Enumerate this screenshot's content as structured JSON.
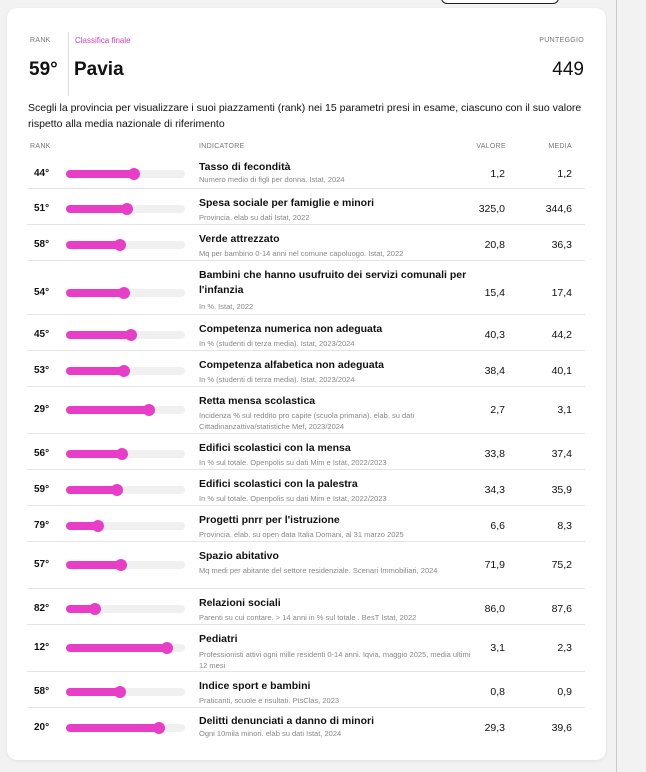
{
  "header": {
    "rank_label": "RANK",
    "classification_label": "Classifica finale",
    "score_label": "PUNTEGGIO",
    "rank": "59°",
    "city": "Pavia",
    "score": "449"
  },
  "description": "Scegli la provincia per visualizzare i suoi piazzamenti (rank) nei 15 parametri presi in esame, ciascuno con il suo valore rispetto alla media nazionale di riferimento",
  "table": {
    "col_rank": "RANK",
    "col_indicator": "INDICATORE",
    "col_value": "VALORE",
    "col_mean": "MEDIA",
    "accent_color": "#e83ec7",
    "rows": [
      {
        "rank": "44°",
        "level": 0.57,
        "title": "Tasso di fecondità",
        "source": "Numero medio di figli per donna. Istat, 2024",
        "value": "1,2",
        "mean": "1,2"
      },
      {
        "rank": "51°",
        "level": 0.51,
        "title": "Spesa sociale per famiglie e minori",
        "source": "Provincia. elab su dati Istat, 2022",
        "value": "325,0",
        "mean": "344,6"
      },
      {
        "rank": "58°",
        "level": 0.45,
        "title": "Verde attrezzato",
        "source": "Mq per bambino 0-14 anni nel comune capoluogo. Istat, 2022",
        "value": "20,8",
        "mean": "36,3"
      },
      {
        "rank": "54°",
        "level": 0.49,
        "title": "Bambini che hanno usufruito dei servizi comunali per l'infanzia",
        "source": "In %. Istat, 2022",
        "value": "15,4",
        "mean": "17,4"
      },
      {
        "rank": "45°",
        "level": 0.55,
        "title": "Competenza numerica non adeguata",
        "source": "In % (studenti di terza media). Istat, 2023/2024",
        "value": "40,3",
        "mean": "44,2"
      },
      {
        "rank": "53°",
        "level": 0.49,
        "title": "Competenza alfabetica non adeguata",
        "source": "In % (studenti di terza media). Istat, 2023/2024",
        "value": "38,4",
        "mean": "40,1"
      },
      {
        "rank": "29°",
        "level": 0.7,
        "title": "Retta mensa scolastica",
        "source": "Incidenza % sul reddito pro capite (scuola primaria). elab. su dati Cittadinanzattiva/statistiche Mef, 2023/2024",
        "value": "2,7",
        "mean": "3,1"
      },
      {
        "rank": "56°",
        "level": 0.47,
        "title": "Edifici scolastici con la mensa",
        "source": "In % sul totale. Openpolis su dati Mim e Istat, 2022/2023",
        "value": "33,8",
        "mean": "37,4"
      },
      {
        "rank": "59°",
        "level": 0.43,
        "title": "Edifici scolastici con la palestra",
        "source": "In % sul totale. Openpolis su dati Mim e Istat, 2022/2023",
        "value": "34,3",
        "mean": "35,9"
      },
      {
        "rank": "79°",
        "level": 0.27,
        "title": "Progetti pnrr per l'istruzione",
        "source": "Provincia. elab. su open data Italia Domani, al 31 marzo 2025",
        "value": "6,6",
        "mean": "8,3"
      },
      {
        "rank": "57°",
        "level": 0.46,
        "title": "Spazio abitativo",
        "source": "Mq medi per abitante del settore residenziale. Scenari Immobiliari, 2024",
        "value": "71,9",
        "mean": "75,2"
      },
      {
        "rank": "82°",
        "level": 0.24,
        "title": "Relazioni sociali",
        "source": "Parenti su cui contare. > 14 anni in % sul totale . BesT Istat, 2022",
        "value": "86,0",
        "mean": "87,6"
      },
      {
        "rank": "12°",
        "level": 0.85,
        "title": "Pediatri",
        "source": "Professionisti attivi ogni mille residenti 0-14 anni. Iqvia, maggio 2025, media ultimi 12 mesi",
        "value": "3,1",
        "mean": "2,3"
      },
      {
        "rank": "58°",
        "level": 0.45,
        "title": "Indice sport e bambini",
        "source": "Praticanti, scuole e risultati. PtsClas, 2023",
        "value": "0,8",
        "mean": "0,9"
      },
      {
        "rank": "20°",
        "level": 0.78,
        "title": "Delitti denunciati a danno di minori",
        "source": "Ogni 10mila minori. elab su dati Istat, 2024",
        "value": "29,3",
        "mean": "39,6"
      }
    ]
  }
}
